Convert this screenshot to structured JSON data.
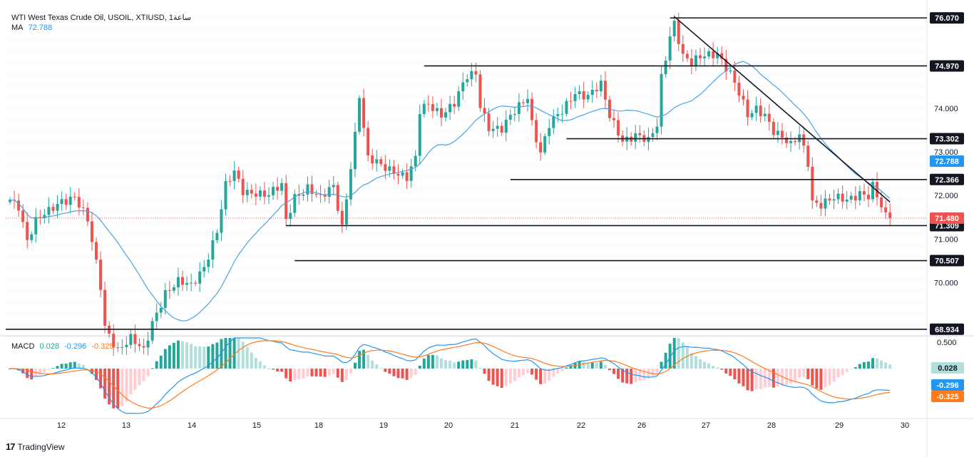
{
  "header": {
    "title": "WTI West Texas Crude Oil, USOIL, XTIUSD, 1ساعة",
    "ma_label": "MA",
    "ma_value": "72.788",
    "macd_label": "MACD",
    "macd_values": [
      "0.028",
      "-0.296",
      "-0.325"
    ]
  },
  "footer": {
    "brand": "TradingView"
  },
  "colors": {
    "up": "#26a69a",
    "down": "#ef5350",
    "ma": "#4aa3df",
    "macd_line": "#2196f3",
    "signal_line": "#ff7a1a",
    "hist_up": "#26a69a",
    "hist_up_light": "#b2dfdb",
    "hist_down": "#ef5350",
    "hist_down_light": "#ffcdd2",
    "price_line": "#ef5350"
  },
  "chart_data": [
    {
      "type": "candlestick",
      "panel": "price",
      "title": "WTI West Texas Crude Oil, USOIL, XTIUSD, 1ساعة",
      "x_ticks": [
        "12",
        "13",
        "14",
        "15",
        "18",
        "19",
        "20",
        "21",
        "22",
        "26",
        "27",
        "28",
        "29",
        "30"
      ],
      "y_ticks": [
        "70.000",
        "71.000",
        "72.000",
        "73.000",
        "74.000"
      ],
      "ylim": [
        68.8,
        76.35
      ],
      "anchors": [
        [
          0,
          71.9
        ],
        [
          2,
          71.8
        ],
        [
          4,
          71.0
        ],
        [
          6,
          71.4
        ],
        [
          9,
          71.6
        ],
        [
          12,
          71.9
        ],
        [
          15,
          72.0
        ],
        [
          18,
          71.4
        ],
        [
          21,
          69.9
        ],
        [
          22,
          69.0
        ],
        [
          25,
          68.5
        ],
        [
          28,
          68.7
        ],
        [
          31,
          68.4
        ],
        [
          33,
          69.1
        ],
        [
          36,
          69.8
        ],
        [
          39,
          70.0
        ],
        [
          42,
          69.9
        ],
        [
          45,
          70.4
        ],
        [
          48,
          71.2
        ],
        [
          50,
          72.2
        ],
        [
          52,
          72.5
        ],
        [
          54,
          72.1
        ],
        [
          57,
          72.1
        ],
        [
          60,
          72.0
        ],
        [
          63,
          72.2
        ],
        [
          64,
          71.4
        ],
        [
          66,
          72.0
        ],
        [
          69,
          72.2
        ],
        [
          72,
          71.9
        ],
        [
          75,
          72.2
        ],
        [
          77,
          71.3
        ],
        [
          78,
          72.0
        ],
        [
          80,
          73.4
        ],
        [
          81,
          74.3
        ],
        [
          82,
          73.5
        ],
        [
          83,
          72.8
        ],
        [
          86,
          72.7
        ],
        [
          89,
          72.6
        ],
        [
          92,
          72.4
        ],
        [
          94,
          72.8
        ],
        [
          95,
          73.9
        ],
        [
          97,
          74.1
        ],
        [
          100,
          73.9
        ],
        [
          103,
          74.1
        ],
        [
          106,
          74.7
        ],
        [
          108,
          74.8
        ],
        [
          109,
          74.1
        ],
        [
          111,
          73.6
        ],
        [
          114,
          73.5
        ],
        [
          117,
          73.9
        ],
        [
          120,
          74.3
        ],
        [
          121,
          73.7
        ],
        [
          123,
          73.0
        ],
        [
          125,
          73.6
        ],
        [
          128,
          73.9
        ],
        [
          131,
          74.4
        ],
        [
          134,
          74.3
        ],
        [
          137,
          74.5
        ],
        [
          139,
          73.8
        ],
        [
          142,
          73.3
        ],
        [
          145,
          73.4
        ],
        [
          148,
          73.2
        ],
        [
          150,
          73.6
        ],
        [
          151,
          74.7
        ],
        [
          153,
          75.7
        ],
        [
          154,
          76.0
        ],
        [
          156,
          75.2
        ],
        [
          158,
          75.0
        ],
        [
          161,
          75.2
        ],
        [
          164,
          75.3
        ],
        [
          167,
          74.8
        ],
        [
          169,
          74.3
        ],
        [
          171,
          73.8
        ],
        [
          173,
          74.0
        ],
        [
          175,
          73.9
        ],
        [
          177,
          73.5
        ],
        [
          179,
          73.3
        ],
        [
          181,
          73.1
        ],
        [
          183,
          73.4
        ],
        [
          185,
          72.8
        ],
        [
          186,
          71.9
        ],
        [
          188,
          71.8
        ],
        [
          191,
          71.9
        ],
        [
          194,
          71.9
        ],
        [
          197,
          72.1
        ],
        [
          199,
          72.0
        ],
        [
          200,
          72.2
        ],
        [
          202,
          71.7
        ],
        [
          203,
          71.48
        ]
      ],
      "ma": {
        "label": "MA",
        "value": 72.788,
        "period": 20
      },
      "last_price": 71.48,
      "levels": [
        {
          "label": "76.070",
          "value": 76.07
        },
        {
          "label": "74.970",
          "value": 74.97
        },
        {
          "label": "73.302",
          "value": 73.302
        },
        {
          "label": "72.366",
          "value": 72.366
        },
        {
          "label": "71.309",
          "value": 71.309
        },
        {
          "label": "70.507",
          "value": 70.507
        },
        {
          "label": "68.934",
          "value": 68.934
        }
      ],
      "level_start_bar": {
        "76.070": 153,
        "74.970": 96,
        "73.302": 129,
        "72.366": 116,
        "71.309": 64,
        "70.507": 66,
        "68.934": 0
      },
      "trendline": {
        "from": [
          154,
          76.1
        ],
        "to": [
          204,
          71.85
        ]
      },
      "ma_tag": {
        "label": "72.788",
        "value": 72.788
      },
      "price_tag": {
        "label": "71.480",
        "value": 71.48
      }
    },
    {
      "type": "macd",
      "panel": "indicator",
      "params": [
        12,
        26,
        9
      ],
      "latest": {
        "histogram": 0.028,
        "macd": -0.296,
        "signal": -0.325
      },
      "y_ticks": [
        "0.500"
      ],
      "tags": [
        {
          "label": "0.028",
          "value": 0.028,
          "series": "histogram"
        },
        {
          "label": "-0.296",
          "value": -0.296,
          "series": "macd"
        },
        {
          "label": "-0.325",
          "value": -0.325,
          "series": "signal"
        }
      ]
    }
  ]
}
